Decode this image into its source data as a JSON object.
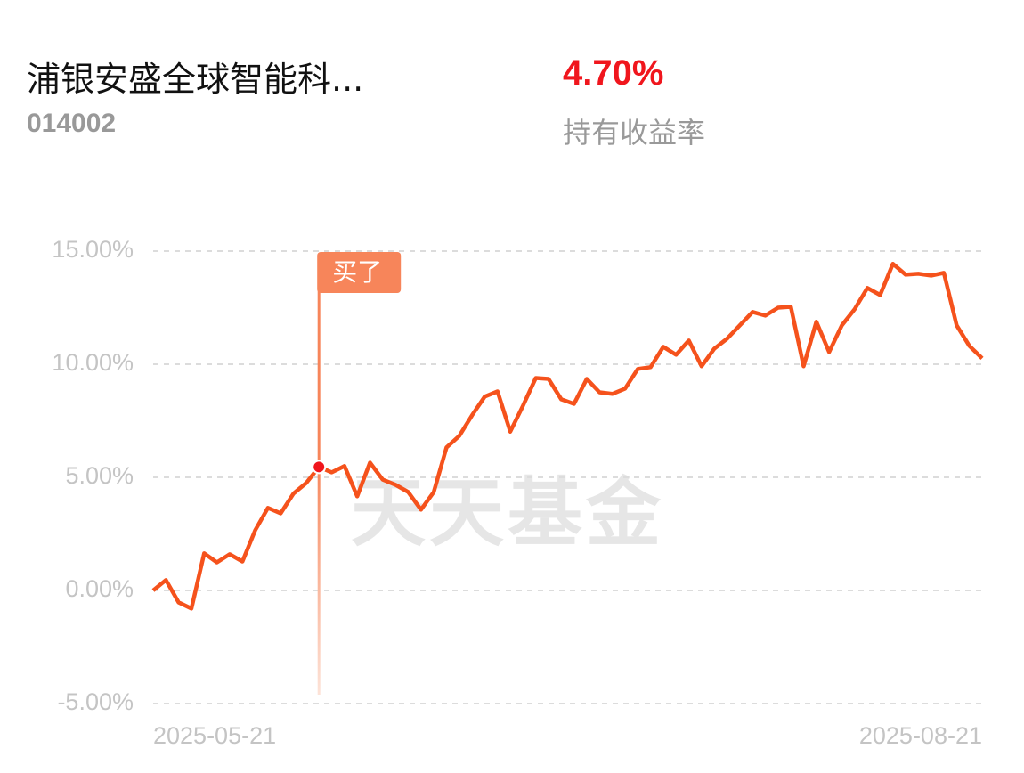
{
  "header": {
    "title": "浦银安盛全球智能科...",
    "code": "014002",
    "return": "4.70%",
    "return_label": "持有收益率"
  },
  "chart_data": {
    "type": "line",
    "color": "#f5521c",
    "grid": true,
    "watermark": "天天基金",
    "categories": [
      "2025-05-21",
      null,
      null,
      null,
      null,
      null,
      null,
      null,
      null,
      null,
      null,
      null,
      null,
      null,
      null,
      null,
      null,
      null,
      null,
      null,
      null,
      null,
      null,
      null,
      null,
      null,
      null,
      null,
      null,
      null,
      null,
      null,
      null,
      null,
      null,
      null,
      null,
      null,
      null,
      null,
      null,
      null,
      null,
      null,
      null,
      null,
      null,
      null,
      null,
      null,
      null,
      null,
      null,
      null,
      null,
      null,
      null,
      null,
      null,
      null,
      null,
      null,
      null,
      null,
      null,
      "2025-08-21"
    ],
    "values": [
      0.0,
      0.46,
      -0.53,
      -0.8,
      1.64,
      1.24,
      1.6,
      1.28,
      2.66,
      3.65,
      3.41,
      4.28,
      4.75,
      5.46,
      5.22,
      5.5,
      4.16,
      5.65,
      4.9,
      4.67,
      4.35,
      3.57,
      4.35,
      6.32,
      6.83,
      7.74,
      8.57,
      8.8,
      7.02,
      8.17,
      9.39,
      9.35,
      8.45,
      8.25,
      9.35,
      8.76,
      8.69,
      8.92,
      9.79,
      9.87,
      10.77,
      10.42,
      11.05,
      9.91,
      10.69,
      11.13,
      11.72,
      12.31,
      12.15,
      12.5,
      12.54,
      9.91,
      11.88,
      10.54,
      11.72,
      12.43,
      13.37,
      13.06,
      14.44,
      13.96,
      14.0,
      13.92,
      14.04,
      11.72,
      10.81,
      10.26
    ],
    "ylim": [
      -5,
      15
    ],
    "yticks": [
      {
        "value": -5,
        "label": "-5.00%"
      },
      {
        "value": 0,
        "label": "0.00%"
      },
      {
        "value": 5,
        "label": "5.00%"
      },
      {
        "value": 10,
        "label": "10.00%"
      },
      {
        "value": 15,
        "label": "15.00%"
      }
    ],
    "buy_marker": {
      "label": "买了",
      "index": 13
    }
  }
}
